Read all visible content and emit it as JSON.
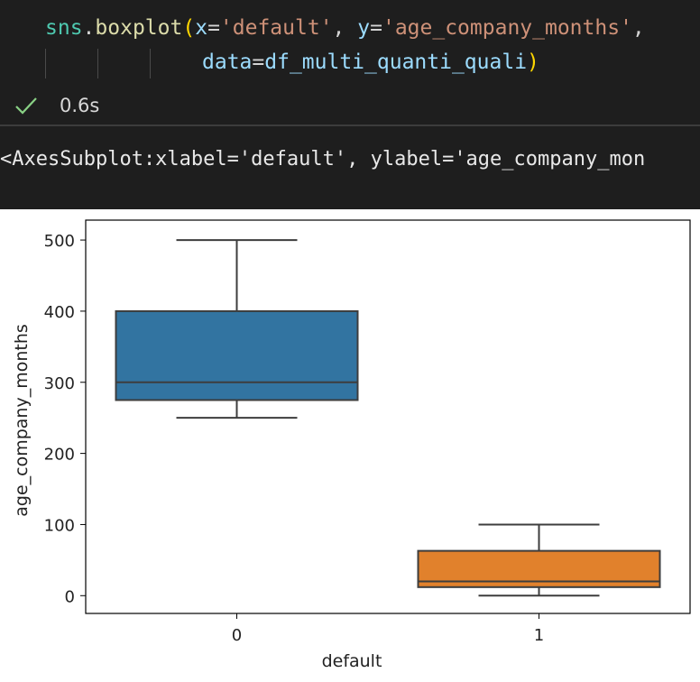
{
  "code": {
    "line1": [
      {
        "t": "sns",
        "c": "#4ec9b0"
      },
      {
        "t": ".",
        "c": "#d4d4d4"
      },
      {
        "t": "boxplot",
        "c": "#dcdcaa"
      },
      {
        "t": "(",
        "c": "#ffd700"
      },
      {
        "t": "x",
        "c": "#9cdcfe"
      },
      {
        "t": "=",
        "c": "#d4d4d4"
      },
      {
        "t": "'default'",
        "c": "#ce9178"
      },
      {
        "t": ", ",
        "c": "#d4d4d4"
      },
      {
        "t": "y",
        "c": "#9cdcfe"
      },
      {
        "t": "=",
        "c": "#d4d4d4"
      },
      {
        "t": "'age_company_months'",
        "c": "#ce9178"
      },
      {
        "t": ",",
        "c": "#d4d4d4"
      }
    ],
    "line2": [
      {
        "t": "data",
        "c": "#9cdcfe"
      },
      {
        "t": "=",
        "c": "#d4d4d4"
      },
      {
        "t": "df_multi_quanti_quali",
        "c": "#9cdcfe"
      },
      {
        "t": ")",
        "c": "#ffd700"
      }
    ]
  },
  "status": {
    "check_icon": "check-icon",
    "check_color": "#89d185",
    "exec_time": "0.6s"
  },
  "output": {
    "text": "<AxesSubplot:xlabel='default', ylabel='age_company_mon"
  },
  "chart_data": {
    "type": "box",
    "xlabel": "default",
    "ylabel": "age_company_months",
    "categories": [
      "0",
      "1"
    ],
    "y_ticks": [
      0,
      100,
      200,
      300,
      400,
      500
    ],
    "ylim": [
      -25,
      528
    ],
    "boxes": [
      {
        "category": "0",
        "whisker_low": 250,
        "q1": 275,
        "median": 300,
        "q3": 400,
        "whisker_high": 500,
        "color": "#3274a1"
      },
      {
        "category": "1",
        "whisker_low": 0,
        "q1": 12,
        "median": 20,
        "q3": 63,
        "whisker_high": 100,
        "color": "#e1812c"
      }
    ],
    "grid": false
  }
}
